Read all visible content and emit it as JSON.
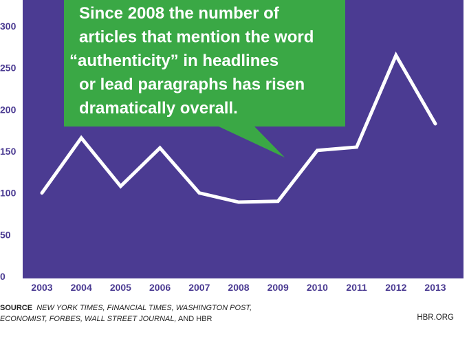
{
  "chart_data": {
    "type": "line",
    "categories": [
      "2003",
      "2004",
      "2005",
      "2006",
      "2007",
      "2008",
      "2009",
      "2010",
      "2011",
      "2012",
      "2013"
    ],
    "values": [
      100,
      166,
      108,
      154,
      100,
      89,
      90,
      151,
      155,
      265,
      183
    ],
    "yticks": [
      "0",
      "50",
      "100",
      "150",
      "200",
      "250",
      "300"
    ],
    "ylim": [
      0,
      310
    ],
    "grid": false,
    "colors": {
      "plot_bg": "#4b3b92",
      "line": "#ffffff",
      "callout_bg": "#3aa845",
      "tick_text": "#4b3b92"
    }
  },
  "callout": {
    "lines": [
      "Since 2008 the number of",
      "articles that mention the word",
      "“authenticity” in headlines",
      "or lead paragraphs has risen",
      "dramatically overall."
    ]
  },
  "footer": {
    "source_label": "SOURCE",
    "source_text_line1": "NEW YORK TIMES, FINANCIAL TIMES, WASHINGTON POST,",
    "source_text_line2a": "ECONOMIST, FORBES, WALL STREET JOURNAL,",
    "source_text_line2b": " AND HBR",
    "brand": "HBR.ORG"
  }
}
